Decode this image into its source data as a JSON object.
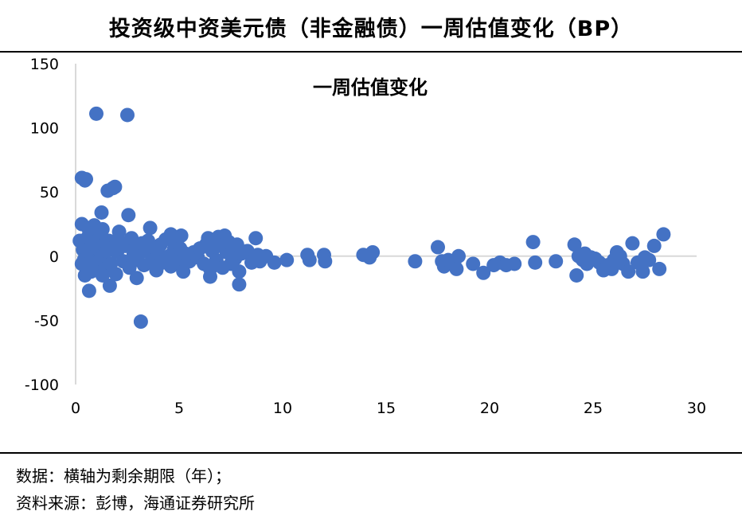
{
  "header": {
    "title": "投资级中资美元债（非金融债）一周估值变化（BP）"
  },
  "footer": {
    "data_note": "数据：横轴为剩余期限（年）；",
    "source_note": "资料来源：彭博，海通证券研究所"
  },
  "chart_data": {
    "type": "scatter",
    "title": "一周估值变化",
    "xlabel": "",
    "ylabel": "",
    "xlim": [
      0,
      30
    ],
    "ylim": [
      -100,
      150
    ],
    "x_ticks": [
      "0",
      "5",
      "10",
      "15",
      "20",
      "25",
      "30"
    ],
    "y_ticks": [
      "150",
      "100",
      "50",
      "0",
      "-50",
      "-100"
    ],
    "grid": false,
    "legend": "none",
    "marker_color": "#4472c4",
    "axis_color": "#d9d9d9",
    "series": [
      {
        "points": [
          [
            1.0,
            111
          ],
          [
            2.5,
            110
          ],
          [
            0.3,
            61
          ],
          [
            0.45,
            59
          ],
          [
            0.5,
            60
          ],
          [
            1.55,
            51
          ],
          [
            1.8,
            53
          ],
          [
            1.9,
            54
          ],
          [
            1.25,
            34
          ],
          [
            2.55,
            32
          ],
          [
            0.3,
            25
          ],
          [
            0.6,
            22
          ],
          [
            0.9,
            24
          ],
          [
            1.3,
            21
          ],
          [
            2.1,
            19
          ],
          [
            3.6,
            22
          ],
          [
            4.6,
            17
          ],
          [
            5.1,
            16
          ],
          [
            6.4,
            14
          ],
          [
            6.9,
            15
          ],
          [
            7.2,
            16
          ],
          [
            8.7,
            14
          ],
          [
            0.2,
            12
          ],
          [
            0.35,
            5
          ],
          [
            0.4,
            -3
          ],
          [
            0.5,
            8
          ],
          [
            0.55,
            -8
          ],
          [
            0.6,
            15
          ],
          [
            0.7,
            2
          ],
          [
            0.75,
            -12
          ],
          [
            0.8,
            10
          ],
          [
            0.85,
            18
          ],
          [
            0.95,
            -5
          ],
          [
            1.05,
            6
          ],
          [
            1.1,
            13
          ],
          [
            1.2,
            -2
          ],
          [
            1.35,
            9
          ],
          [
            1.4,
            -10
          ],
          [
            1.5,
            4
          ],
          [
            1.6,
            12
          ],
          [
            1.7,
            -6
          ],
          [
            1.85,
            7
          ],
          [
            1.95,
            -14
          ],
          [
            2.0,
            3
          ],
          [
            2.15,
            11
          ],
          [
            2.3,
            -4
          ],
          [
            2.4,
            8
          ],
          [
            2.6,
            -9
          ],
          [
            2.7,
            14
          ],
          [
            2.8,
            1
          ],
          [
            2.9,
            6
          ],
          [
            3.0,
            -3
          ],
          [
            3.2,
            10
          ],
          [
            3.3,
            -7
          ],
          [
            3.4,
            4
          ],
          [
            3.5,
            12
          ],
          [
            3.7,
            -2
          ],
          [
            3.8,
            7
          ],
          [
            3.9,
            -11
          ],
          [
            4.0,
            2
          ],
          [
            4.1,
            9
          ],
          [
            4.2,
            -5
          ],
          [
            4.35,
            13
          ],
          [
            4.5,
            0
          ],
          [
            4.6,
            -8
          ],
          [
            4.75,
            5
          ],
          [
            4.85,
            11
          ],
          [
            4.95,
            -3
          ],
          [
            5.05,
            6
          ],
          [
            5.2,
            -12
          ],
          [
            5.3,
            2
          ],
          [
            5.5,
            -4
          ],
          [
            5.7,
            3
          ],
          [
            5.9,
            -1
          ],
          [
            6.0,
            6
          ],
          [
            6.2,
            -6
          ],
          [
            6.3,
            9
          ],
          [
            6.5,
            -10
          ],
          [
            6.6,
            4
          ],
          [
            6.7,
            12
          ],
          [
            6.8,
            -3
          ],
          [
            7.0,
            8
          ],
          [
            7.1,
            -9
          ],
          [
            7.3,
            3
          ],
          [
            7.4,
            11
          ],
          [
            7.5,
            -6
          ],
          [
            7.6,
            5
          ],
          [
            7.7,
            -2
          ],
          [
            7.8,
            9
          ],
          [
            7.9,
            -12
          ],
          [
            8.0,
            2
          ],
          [
            8.3,
            4
          ],
          [
            8.5,
            -5
          ],
          [
            8.8,
            1
          ],
          [
            8.9,
            -4
          ],
          [
            9.2,
            0
          ],
          [
            9.6,
            -5
          ],
          [
            10.2,
            -3
          ],
          [
            0.3,
            -6
          ],
          [
            0.45,
            -15
          ],
          [
            0.65,
            -27
          ],
          [
            1.3,
            -15
          ],
          [
            1.65,
            -23
          ],
          [
            2.95,
            -17
          ],
          [
            3.15,
            -51
          ],
          [
            6.5,
            -16
          ],
          [
            7.9,
            -22
          ],
          [
            11.2,
            1
          ],
          [
            11.3,
            -3
          ],
          [
            12.0,
            1
          ],
          [
            12.05,
            -4
          ],
          [
            13.9,
            1
          ],
          [
            14.2,
            -1
          ],
          [
            14.35,
            3
          ],
          [
            16.4,
            -4
          ],
          [
            17.5,
            7
          ],
          [
            17.7,
            -4
          ],
          [
            17.8,
            -8
          ],
          [
            18.0,
            -3
          ],
          [
            18.3,
            -7
          ],
          [
            18.4,
            -10
          ],
          [
            18.5,
            0
          ],
          [
            19.2,
            -6
          ],
          [
            19.7,
            -13
          ],
          [
            20.2,
            -7
          ],
          [
            20.5,
            -5
          ],
          [
            20.8,
            -7
          ],
          [
            21.2,
            -6
          ],
          [
            22.1,
            11
          ],
          [
            22.2,
            -5
          ],
          [
            23.2,
            -4
          ],
          [
            24.1,
            9
          ],
          [
            24.2,
            -15
          ],
          [
            24.3,
            0
          ],
          [
            24.5,
            -3
          ],
          [
            24.6,
            2
          ],
          [
            24.7,
            -6
          ],
          [
            24.9,
            -1
          ],
          [
            25.1,
            -2
          ],
          [
            25.3,
            -5
          ],
          [
            25.5,
            -11
          ],
          [
            25.7,
            -7
          ],
          [
            25.9,
            -10
          ],
          [
            26.0,
            -3
          ],
          [
            26.15,
            3
          ],
          [
            26.3,
            0
          ],
          [
            26.45,
            -6
          ],
          [
            26.7,
            -12
          ],
          [
            26.9,
            10
          ],
          [
            27.15,
            -5
          ],
          [
            27.4,
            -12
          ],
          [
            27.5,
            -1
          ],
          [
            27.7,
            -3
          ],
          [
            27.95,
            8
          ],
          [
            28.2,
            -10
          ],
          [
            28.4,
            17
          ]
        ]
      }
    ]
  }
}
